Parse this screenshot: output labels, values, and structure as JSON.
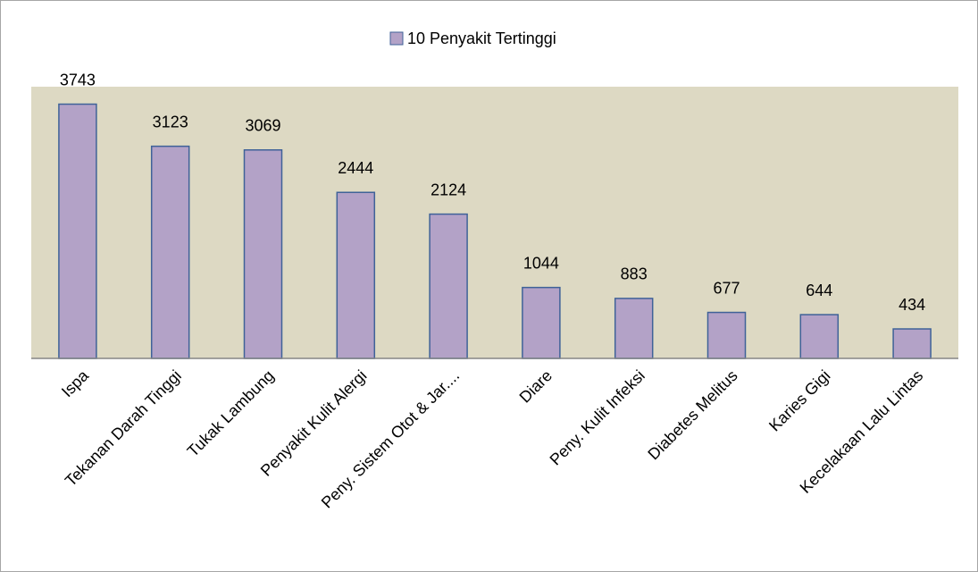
{
  "chart_data": {
    "type": "bar",
    "categories": [
      "Ispa",
      "Tekanan Darah Tinggi",
      "Tukak Lambung",
      "Penyakit Kulit Alergi",
      "Peny. Sistem Otot & Jar....",
      "Diare",
      "Peny. Kulit Infeksi",
      "Diabetes Melitus",
      "Karies Gigi",
      "Kecelakaan Lalu Lintas"
    ],
    "series": [
      {
        "name": "10 Penyakit Tertinggi",
        "color": "#b3a2c7",
        "values": [
          3743,
          3123,
          3069,
          2444,
          2124,
          1044,
          883,
          677,
          644,
          434
        ]
      }
    ],
    "ylim": [
      0,
      4000
    ],
    "legend": "top",
    "plot_background": "#ddd9c3",
    "bar_edge_color": "#3f6298"
  }
}
